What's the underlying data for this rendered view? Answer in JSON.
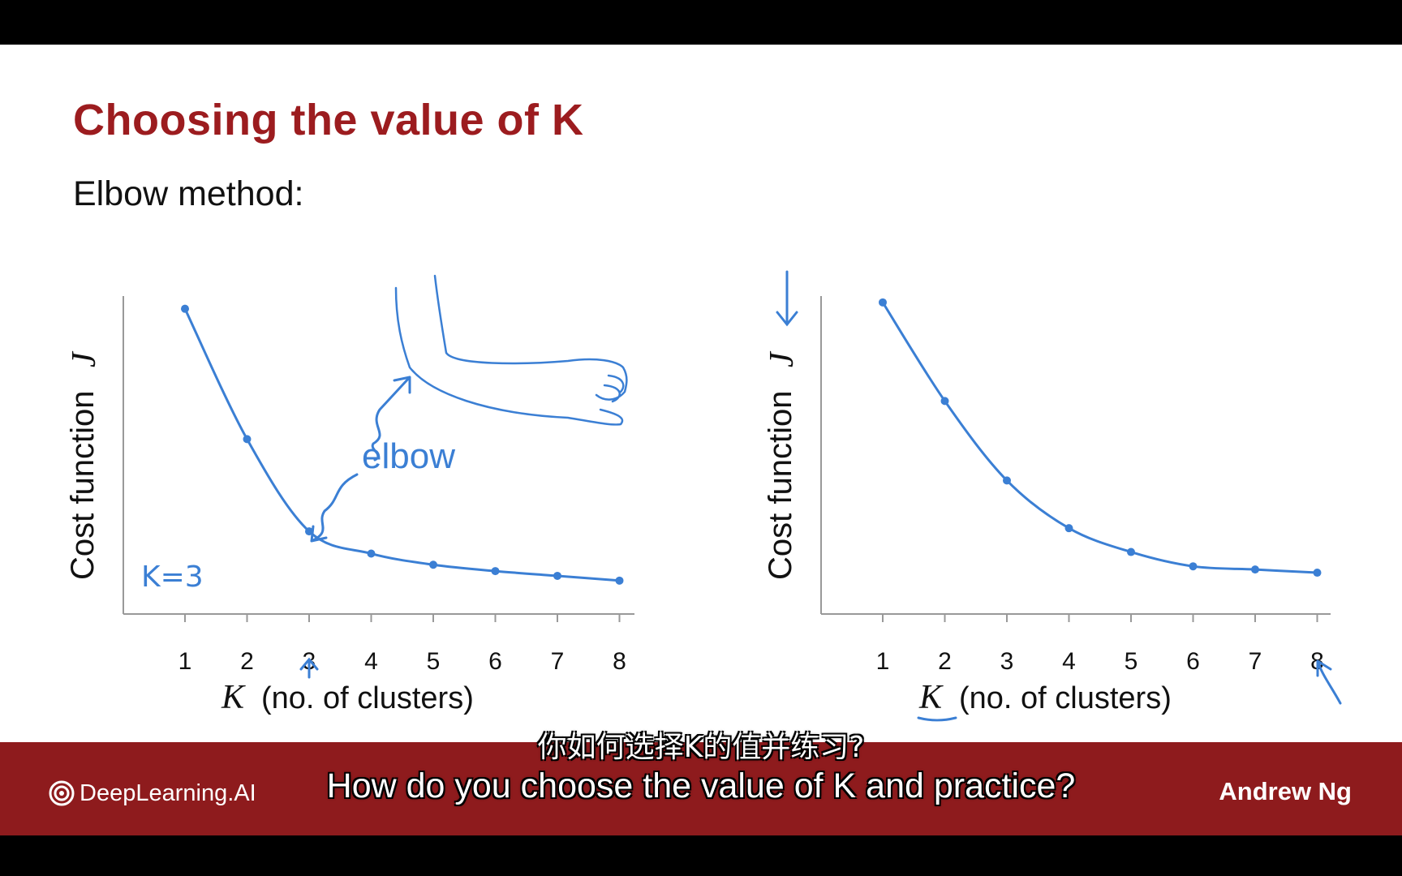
{
  "slide": {
    "title": "Choosing the value of K",
    "subtitle": "Elbow method:"
  },
  "annotations": {
    "elbow_label": "elbow",
    "k_choice": "K=3"
  },
  "footer": {
    "brand": "DeepLearning.AI",
    "author": "Andrew Ng"
  },
  "subtitles": {
    "zh": "你如何选择K的值并练习?",
    "en": "How do you choose the value of K and practice?"
  },
  "colors": {
    "title": "#9c1c1f",
    "ink": "#3b7fd4",
    "footer_bg": "#8e1b1d"
  },
  "chart_data": [
    {
      "type": "line",
      "ylabel_text": "Cost function",
      "ylabel_symbol": "J",
      "xlabel_symbol": "K",
      "xlabel_text": "(no. of clusters)",
      "x": [
        1,
        2,
        3,
        4,
        5,
        6,
        7,
        8
      ],
      "tick_labels": [
        "1",
        "2",
        "3",
        "4",
        "5",
        "6",
        "7",
        "8"
      ],
      "y": [
        0.96,
        0.55,
        0.26,
        0.19,
        0.155,
        0.135,
        0.12,
        0.105
      ],
      "ylim": [
        0,
        1
      ],
      "grid": false
    },
    {
      "type": "line",
      "ylabel_text": "Cost function",
      "ylabel_symbol": "J",
      "xlabel_symbol": "K",
      "xlabel_text": "(no. of clusters)",
      "x": [
        1,
        2,
        3,
        4,
        5,
        6,
        7,
        8
      ],
      "tick_labels": [
        "1",
        "2",
        "3",
        "4",
        "5",
        "6",
        "7",
        "8"
      ],
      "y": [
        0.98,
        0.67,
        0.42,
        0.27,
        0.195,
        0.15,
        0.14,
        0.13
      ],
      "ylim": [
        0,
        1
      ],
      "grid": false
    }
  ]
}
